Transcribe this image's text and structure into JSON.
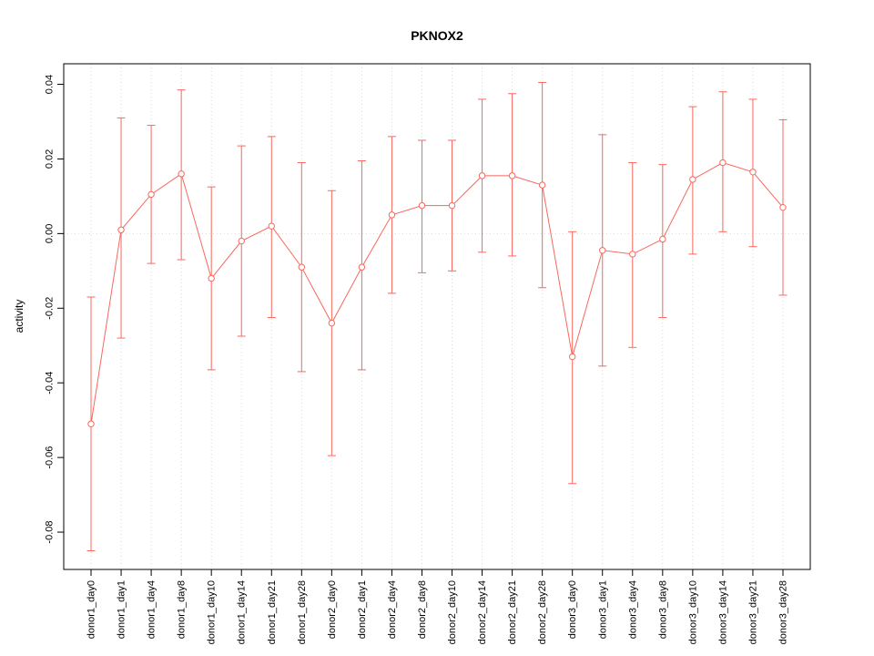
{
  "chart_data": {
    "type": "line",
    "title": "PKNOX2",
    "xlabel": "",
    "ylabel": "activity",
    "legend": "none",
    "grid": "dotted light-gray vertical line per category, dotted horizontal line at 0",
    "point_style": "open-circle",
    "error_bars": true,
    "ylim": [
      -0.09,
      0.0455
    ],
    "y_ticks": [
      "-0.08",
      "-0.06",
      "-0.04",
      "-0.02",
      "0.00",
      "0.02",
      "0.04"
    ],
    "categories": [
      "donor1_day0",
      "donor1_day1",
      "donor1_day4",
      "donor1_day8",
      "donor1_day10",
      "donor1_day14",
      "donor1_day21",
      "donor1_day28",
      "donor2_day0",
      "donor2_day1",
      "donor2_day4",
      "donor2_day8",
      "donor2_day10",
      "donor2_day14",
      "donor2_day21",
      "donor2_day28",
      "donor3_day0",
      "donor3_day1",
      "donor3_day4",
      "donor3_day8",
      "donor3_day10",
      "donor3_day14",
      "donor3_day21",
      "donor3_day28"
    ],
    "values": [
      -0.051,
      0.001,
      0.0105,
      0.016,
      -0.012,
      -0.002,
      0.002,
      -0.009,
      -0.024,
      -0.009,
      0.005,
      0.0075,
      0.0075,
      0.0155,
      0.0155,
      0.013,
      -0.033,
      -0.0045,
      -0.0055,
      -0.0015,
      0.0145,
      0.019,
      0.0165,
      0.007
    ],
    "error_upper": [
      -0.017,
      0.031,
      0.029,
      0.0385,
      0.0125,
      0.0235,
      0.026,
      0.019,
      0.0115,
      0.0195,
      0.026,
      0.025,
      0.025,
      0.036,
      0.0375,
      0.0405,
      0.0005,
      0.0265,
      0.019,
      0.0185,
      0.034,
      0.038,
      0.036,
      0.0305
    ],
    "error_lower": [
      -0.085,
      -0.028,
      -0.008,
      -0.007,
      -0.0365,
      -0.0275,
      -0.0225,
      -0.037,
      -0.0595,
      -0.0365,
      -0.016,
      -0.0105,
      -0.01,
      -0.005,
      -0.006,
      -0.0145,
      -0.067,
      -0.0355,
      -0.0305,
      -0.0225,
      -0.0055,
      0.0005,
      -0.0035,
      -0.0165
    ],
    "colors": {
      "series": "#f8685e",
      "grid": "#d8d8d8",
      "axis": "#000000",
      "background": "#ffffff"
    }
  }
}
